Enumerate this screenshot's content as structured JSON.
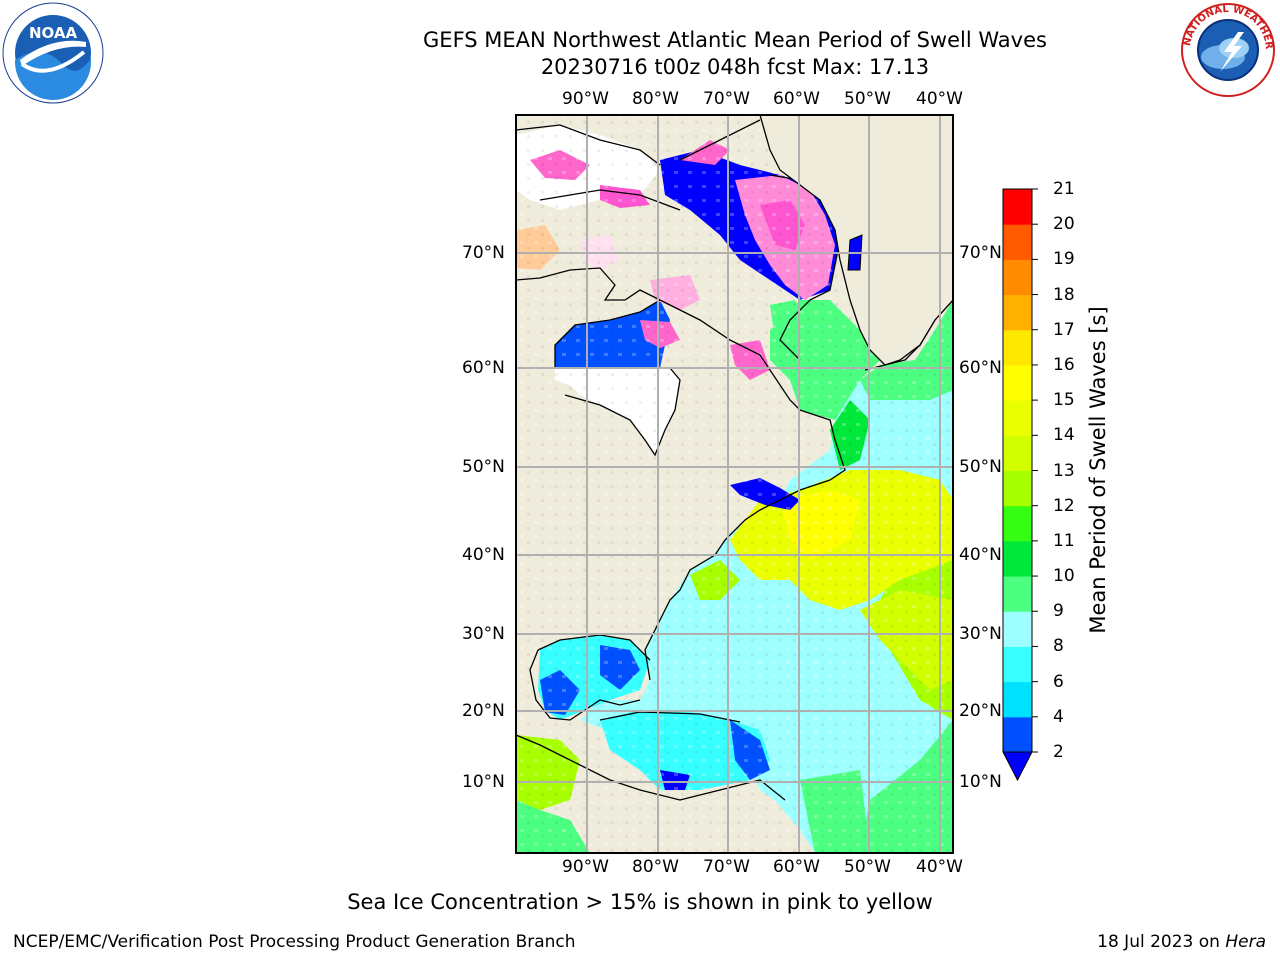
{
  "title": {
    "line1": "GEFS MEAN Northwest Atlantic Mean Period of Swell Waves",
    "line2": "20230716 t00z 048h fcst   Max: 17.13"
  },
  "logos": {
    "left": "noaa-logo",
    "right": "nws-logo",
    "left_text": "NATIONAL OCEANIC AND ATMOSPHERIC ADMINISTRATION · U.S. DEPARTMENT OF COMMERCE · NOAA",
    "right_text": "NATIONAL WEATHER SERVICE"
  },
  "map": {
    "lon_labels": [
      "90°W",
      "80°W",
      "70°W",
      "60°W",
      "50°W",
      "40°W"
    ],
    "lat_labels": [
      "70°N",
      "60°N",
      "50°N",
      "40°N",
      "30°N",
      "20°N",
      "10°N"
    ],
    "land_color": "#efecdc",
    "grid_color": "#b0b0b0"
  },
  "colorbar": {
    "label": "Mean Period of Swell Waves [s]",
    "ticks": [
      "2",
      "4",
      "6",
      "8",
      "9",
      "10",
      "11",
      "12",
      "13",
      "14",
      "15",
      "16",
      "17",
      "18",
      "19",
      "20",
      "21"
    ],
    "colors": [
      "#0050ff",
      "#00e0ff",
      "#38ffff",
      "#9dffff",
      "#4cff80",
      "#00e83a",
      "#34ff12",
      "#a8ff00",
      "#d2ff00",
      "#eaff00",
      "#ffff00",
      "#ffe800",
      "#ffb000",
      "#ff8c00",
      "#ff5a00",
      "#ff2a00",
      "#ff0000"
    ],
    "under_color": "#0000ff"
  },
  "footnote": "Sea Ice Concentration > 15% is shown in pink to yellow",
  "footer": {
    "left": "NCEP/EMC/Verification Post Processing Product Generation Branch",
    "right_date": "18 Jul 2023 on ",
    "right_machine": "Hera"
  }
}
